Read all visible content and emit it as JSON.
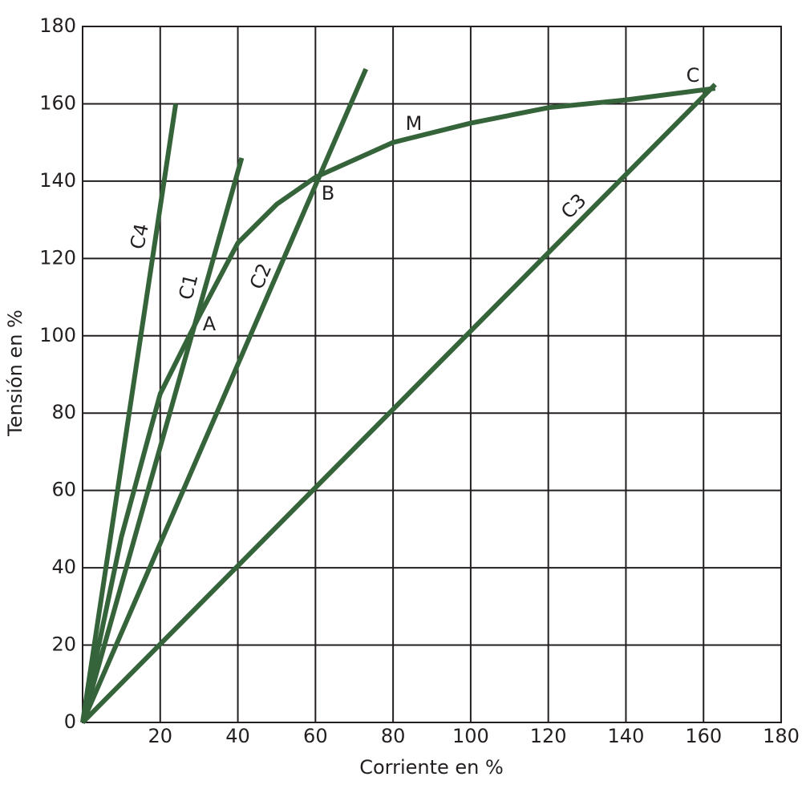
{
  "chart_data": {
    "type": "line",
    "xlabel": "Corriente en %",
    "ylabel": "Tensión en %",
    "xlim": [
      0,
      180
    ],
    "ylim": [
      0,
      180
    ],
    "xticks": [
      20,
      40,
      60,
      80,
      100,
      120,
      140,
      160,
      180
    ],
    "yticks": [
      0,
      20,
      40,
      60,
      80,
      100,
      120,
      140,
      160,
      180
    ],
    "grid": true,
    "series": [
      {
        "name": "C4",
        "color": "#35633a",
        "x": [
          0,
          24
        ],
        "values": [
          0,
          160
        ]
      },
      {
        "name": "C1",
        "color": "#35633a",
        "x": [
          0,
          41
        ],
        "values": [
          0,
          146
        ]
      },
      {
        "name": "C2",
        "color": "#35633a",
        "x": [
          0,
          73
        ],
        "values": [
          0,
          169
        ]
      },
      {
        "name": "C3",
        "color": "#35633a",
        "x": [
          0,
          163
        ],
        "values": [
          0,
          165
        ]
      },
      {
        "name": "M",
        "color": "#35633a",
        "x": [
          0,
          10,
          20,
          30,
          40,
          50,
          60,
          80,
          100,
          120,
          140,
          163
        ],
        "values": [
          0,
          48,
          85,
          105,
          124,
          134,
          141,
          150,
          155,
          159,
          161,
          164
        ]
      }
    ],
    "annotations": [
      "A",
      "B",
      "C"
    ]
  }
}
